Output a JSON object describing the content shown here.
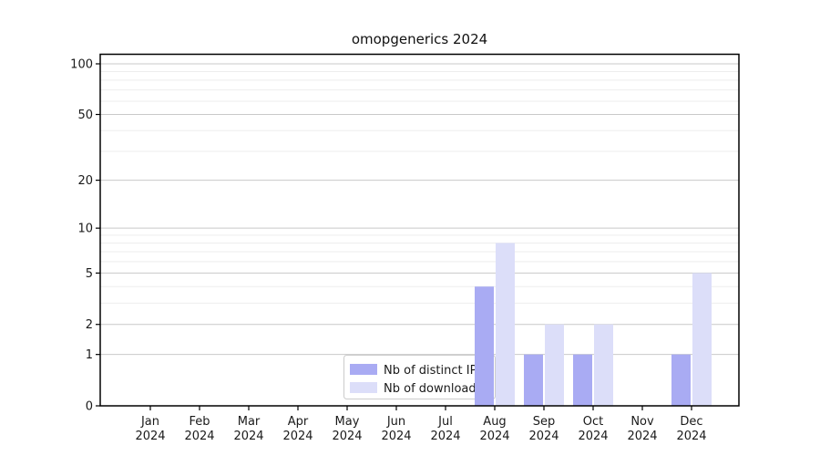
{
  "title": "omopgenerics 2024",
  "legend": {
    "items": [
      {
        "label": "Nb of distinct IPs",
        "color": "#a9abf3"
      },
      {
        "label": "Nb of downloads",
        "color": "#dcdef9"
      }
    ]
  },
  "chart_data": {
    "type": "bar",
    "title": "omopgenerics 2024",
    "categories": [
      "Jan 2024",
      "Feb 2024",
      "Mar 2024",
      "Apr 2024",
      "May 2024",
      "Jun 2024",
      "Jul 2024",
      "Aug 2024",
      "Sep 2024",
      "Oct 2024",
      "Nov 2024",
      "Dec 2024"
    ],
    "series": [
      {
        "name": "Nb of distinct IPs",
        "color": "#a9abf3",
        "values": [
          0,
          0,
          0,
          0,
          0,
          0,
          0,
          4,
          1,
          1,
          0,
          1
        ]
      },
      {
        "name": "Nb of downloads",
        "color": "#dcdef9",
        "values": [
          0,
          0,
          0,
          0,
          0,
          0,
          0,
          8,
          2,
          2,
          0,
          5
        ]
      }
    ],
    "xlabel": "",
    "ylabel": "",
    "y_scale": "log10(1+v)",
    "ylim": [
      0,
      115
    ],
    "y_ticks": [
      0,
      1,
      2,
      5,
      10,
      20,
      50,
      100
    ],
    "y_minor_gridlines": [
      3,
      4,
      6,
      7,
      8,
      9,
      30,
      40,
      60,
      70,
      80,
      90
    ],
    "grid": "horizontal",
    "legend_position": "inside-bottom-center"
  },
  "colors": {
    "background": "#ffffff",
    "axis": "#000000",
    "grid_major": "#c9c9c9",
    "grid_minor": "#ededed",
    "legend_border": "#cccccc",
    "text": "#1a1a1a"
  }
}
